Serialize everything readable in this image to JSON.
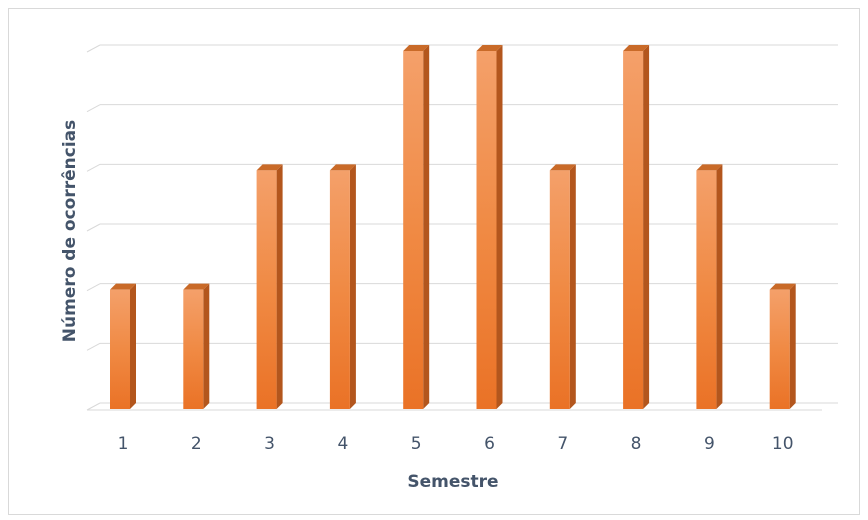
{
  "chart_data": {
    "type": "bar",
    "categories": [
      "1",
      "2",
      "3",
      "4",
      "5",
      "6",
      "7",
      "8",
      "9",
      "10"
    ],
    "values": [
      2,
      2,
      4,
      4,
      6,
      6,
      4,
      6,
      4,
      2
    ],
    "xlabel": "Semestre",
    "ylabel": "Número de ocorrências",
    "ylim": [
      0,
      6
    ],
    "grid": true,
    "colors": {
      "bar_front": "#ed7d31",
      "bar_front_light": "#f2995a",
      "bar_side": "#b3561d",
      "bar_top": "#c96a28",
      "grid": "#d9d9d9",
      "text": "#44546a"
    }
  }
}
